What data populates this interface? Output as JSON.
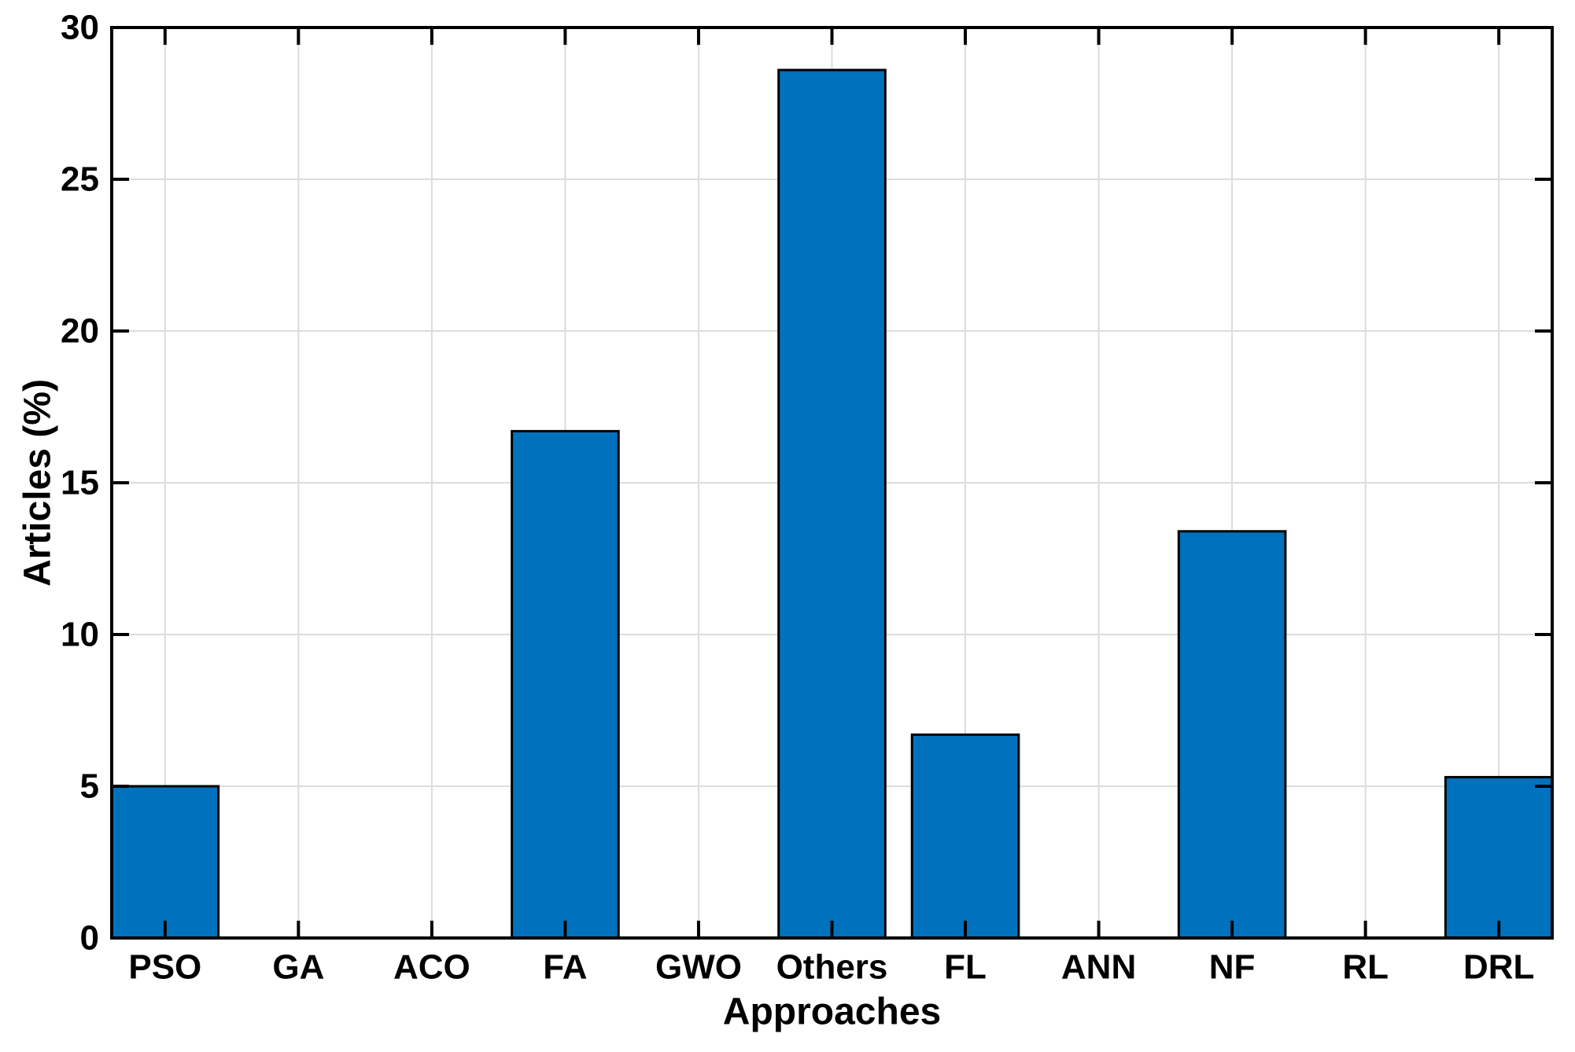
{
  "figure": {
    "background": "#ffffff",
    "title": ""
  },
  "chart_data": {
    "type": "bar",
    "title": "",
    "xlabel": "Approaches",
    "ylabel": "Articles (%)",
    "categories": [
      "PSO",
      "GA",
      "ACO",
      "FA",
      "GWO",
      "Others",
      "FL",
      "ANN",
      "NF",
      "RL",
      "DRL"
    ],
    "values": [
      5.0,
      0,
      0,
      16.7,
      0,
      28.6,
      6.7,
      0,
      13.4,
      0,
      5.3
    ],
    "ylim": [
      0,
      30
    ],
    "yticks": [
      0,
      5,
      10,
      15,
      20,
      25,
      30
    ],
    "grid": true,
    "legend_position": "none",
    "bar_color": "#0072BD",
    "bar_edge_color": "#000000",
    "grid_color": "#DCDCDC",
    "axis_color": "#000000",
    "tick_direction": "in",
    "box": true
  }
}
